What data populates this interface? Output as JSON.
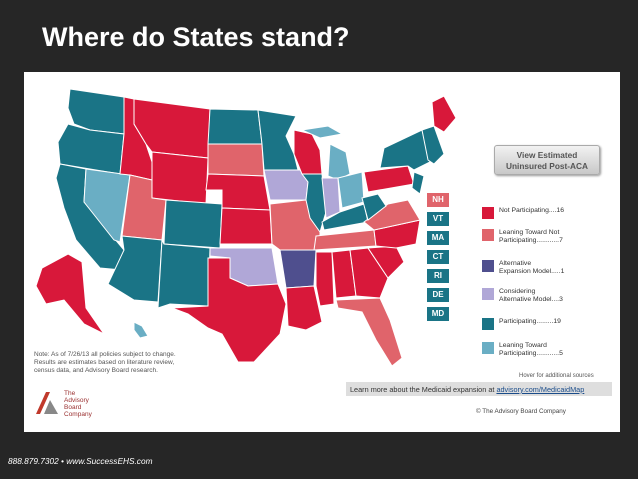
{
  "slide": {
    "title": "Where do States stand?",
    "footer": "888.879.7302  •  www.SuccessEHS.com"
  },
  "colors": {
    "background": "#262626",
    "not_participating": "#d8183a",
    "leaning_not": "#e0646b",
    "alternative": "#4f4f8e",
    "considering": "#b0a7d7",
    "participating": "#1a7486",
    "leaning_toward": "#6aaec4"
  },
  "map": {
    "button_line1": "View Estimated",
    "button_line2": "Uninsured Post-ACA",
    "hover_note": "Hover for additional sources",
    "note_lines": [
      "Note: As of 7/26/13 all policies subject to change.",
      "Results are estimates based on literature review,",
      "census data, and Advisory Board research."
    ],
    "learn_prefix": "Learn more about the Medicaid expansion at ",
    "learn_link": "advisory.com/MedicaidMap",
    "copyright": "© The Advisory Board Company",
    "logo_lines": [
      "The",
      "Advisory",
      "Board",
      "Company"
    ],
    "small_states": [
      {
        "abbr": "NH",
        "status": "leaning_not"
      },
      {
        "abbr": "VT",
        "status": "participating"
      },
      {
        "abbr": "MA",
        "status": "participating"
      },
      {
        "abbr": "CT",
        "status": "participating"
      },
      {
        "abbr": "RI",
        "status": "participating"
      },
      {
        "abbr": "DE",
        "status": "participating"
      },
      {
        "abbr": "MD",
        "status": "participating"
      }
    ],
    "legend": [
      {
        "line1": "Not Participating....16",
        "line2": "",
        "color": "#d8183a"
      },
      {
        "line1": "Leaning Toward Not",
        "line2": "Participating............7",
        "color": "#e0646b"
      },
      {
        "line1": "Alternative",
        "line2": "Expansion Model.....1",
        "color": "#4f4f8e"
      },
      {
        "line1": "Considering",
        "line2": "Alternative Model....3",
        "color": "#b0a7d7"
      },
      {
        "line1": "Participating.........19",
        "line2": "",
        "color": "#1a7486"
      },
      {
        "line1": "Leaning Toward",
        "line2": "Participating............5",
        "color": "#6aaec4"
      }
    ]
  }
}
